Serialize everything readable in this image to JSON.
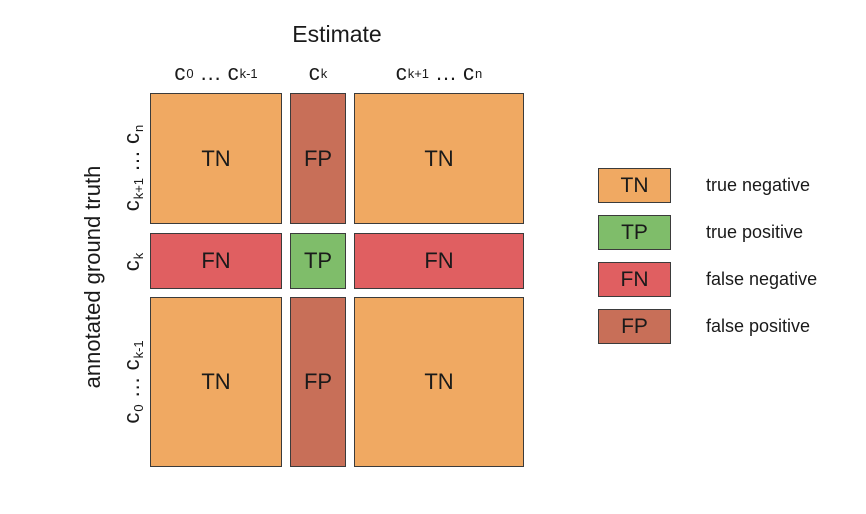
{
  "title": "Estimate",
  "y_axis_label": "annotated ground truth",
  "columns": [
    {
      "base": "c",
      "sub_first": "0",
      "ellipsis": "…",
      "base2": "c",
      "sub_last": "k-1"
    },
    {
      "base": "c",
      "sub": "k"
    },
    {
      "base": "c",
      "sub_first": "k+1",
      "ellipsis": "…",
      "base2": "c",
      "sub_last": "n"
    }
  ],
  "rows": [
    {
      "base": "c",
      "sub_first": "k+1",
      "ellipsis": "…",
      "base2": "c",
      "sub_last": "n"
    },
    {
      "base": "c",
      "sub": "k"
    },
    {
      "base": "c",
      "sub_first": "0",
      "ellipsis": "…",
      "base2": "c",
      "sub_last": "k-1"
    }
  ],
  "cells": [
    [
      "TN",
      "FP",
      "TN"
    ],
    [
      "FN",
      "TP",
      "FN"
    ],
    [
      "TN",
      "FP",
      "TN"
    ]
  ],
  "legend": [
    {
      "code": "TN",
      "label": "true negative",
      "color": "#f0a962"
    },
    {
      "code": "TP",
      "label": "true positive",
      "color": "#7fbd6a"
    },
    {
      "code": "FN",
      "label": "false negative",
      "color": "#e05f61"
    },
    {
      "code": "FP",
      "label": "false positive",
      "color": "#c86f58"
    }
  ]
}
